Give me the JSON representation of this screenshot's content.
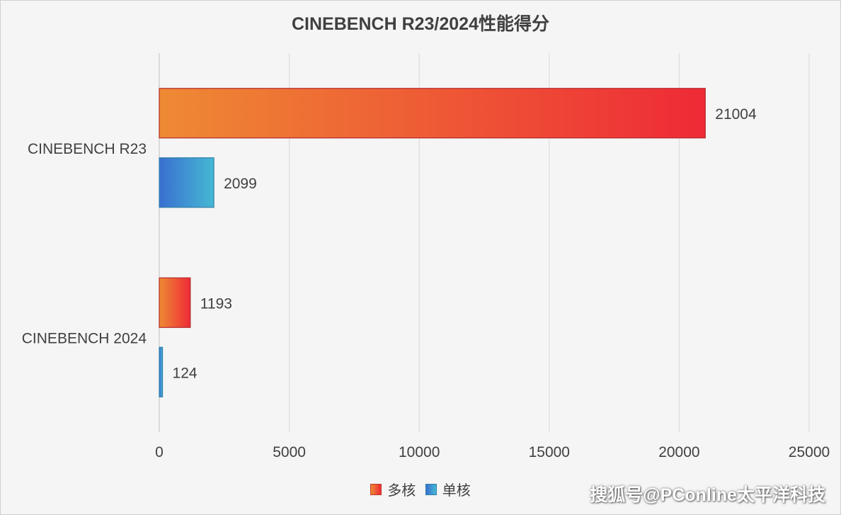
{
  "chart_data": {
    "type": "bar",
    "orientation": "horizontal",
    "title": "CINEBENCH R23/2024性能得分",
    "categories": [
      "CINEBENCH R23",
      "CINEBENCH 2024"
    ],
    "series": [
      {
        "name": "多核",
        "values": [
          21004,
          1193
        ],
        "color_start": "#ee8a34",
        "color_end": "#ee2a36"
      },
      {
        "name": "单核",
        "values": [
          2099,
          124
        ],
        "color_start": "#3a6fd0",
        "color_end": "#45b8d3"
      }
    ],
    "x_ticks": [
      0,
      5000,
      10000,
      15000,
      20000,
      25000
    ],
    "xlim": [
      0,
      25000
    ],
    "grid": true,
    "legend_position": "bottom"
  },
  "watermark": "搜狐号@PConline太平洋科技"
}
